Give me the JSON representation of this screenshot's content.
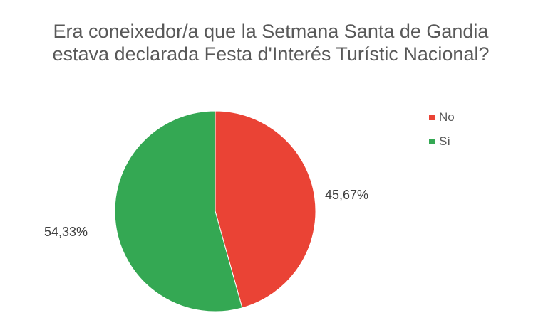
{
  "chart_data": {
    "type": "pie",
    "title": "Era coneixedor/a que la Setmana Santa de Gandia estava declarada Festa d'Interés Turístic Nacional?",
    "categories": [
      "No",
      "Sí"
    ],
    "values": [
      45.67,
      54.33
    ],
    "data_labels": [
      "45,67%",
      "54,33%"
    ],
    "colors": [
      "#ea4335",
      "#34a853"
    ],
    "legend_position": "right"
  }
}
